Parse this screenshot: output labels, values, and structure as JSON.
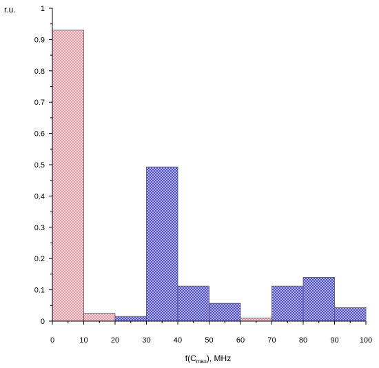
{
  "chart_data": {
    "type": "bar",
    "subtype": "overlaid-histogram",
    "ylabel": "r.u.",
    "xlabel": {
      "prefix": "f(C",
      "subscript": "max",
      "suffix": "), MHz"
    },
    "xlim": [
      0,
      100
    ],
    "ylim": [
      0,
      1
    ],
    "x_ticks": [
      "0",
      "10",
      "20",
      "30",
      "40",
      "50",
      "60",
      "70",
      "80",
      "90",
      "100"
    ],
    "y_ticks": [
      "0",
      "0.1",
      "0.2",
      "0.3",
      "0.4",
      "0.5",
      "0.6",
      "0.7",
      "0.8",
      "0.9",
      "1"
    ],
    "y_tick_values": [
      0,
      0.1,
      0.2,
      0.3,
      0.4,
      0.5,
      0.6,
      0.7,
      0.8,
      0.9,
      1
    ],
    "bin_edges": [
      0,
      10,
      20,
      30,
      40,
      50,
      60,
      70,
      80,
      90,
      100
    ],
    "series": [
      {
        "color": "#e8a3ad",
        "hatch_color": "#d9788a",
        "values": [
          0.93,
          0.025,
          0.0,
          0.0,
          0.018,
          0.0,
          0.01,
          0.0,
          0.023,
          0.0
        ]
      },
      {
        "color": "#4a4ad8",
        "hatch_color": "#2a2acc",
        "values": [
          0.0,
          0.0,
          0.015,
          0.493,
          0.112,
          0.057,
          0.0,
          0.112,
          0.14,
          0.043
        ]
      }
    ],
    "grid": false,
    "legend": false
  }
}
